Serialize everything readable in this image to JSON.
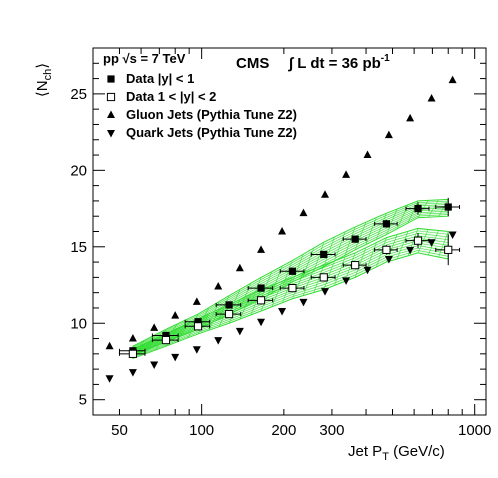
{
  "chart_data": {
    "type": "scatter",
    "title": "",
    "xlabel": "Jet P",
    "xlabel_sub": "T",
    "xlabel_unit": "(GeV/c)",
    "ylabel": "⟨N",
    "ylabel_sub": "ch",
    "ylabel_close": "⟩",
    "x_scale": "log",
    "xlim": [
      40,
      1100
    ],
    "ylim": [
      4,
      28
    ],
    "x_tick_labels": [
      "50",
      "100",
      "200",
      "300",
      "1000"
    ],
    "y_tick_labels": [
      "5",
      "10",
      "15",
      "20",
      "25"
    ],
    "grid": false,
    "legend_position": "top-left",
    "header": {
      "left": "pp √s = 7 TeV",
      "cms": "CMS",
      "lumi": "∫ L dt = 36 pb",
      "lumi_sup": "-1"
    },
    "series": [
      {
        "name": "Data |y| < 1",
        "marker": "filled-square",
        "x": [
          56,
          74,
          97,
          126,
          165,
          215,
          280,
          365,
          475,
          620,
          800
        ],
        "x_low": [
          50,
          66,
          87,
          113,
          148,
          194,
          252,
          330,
          430,
          560,
          720
        ],
        "x_high": [
          62,
          82,
          107,
          139,
          182,
          237,
          308,
          400,
          520,
          680,
          880
        ],
        "y": [
          8.2,
          9.2,
          10.1,
          11.2,
          12.3,
          13.4,
          14.5,
          15.5,
          16.5,
          17.5,
          17.6
        ],
        "y_err": [
          0.15,
          0.15,
          0.15,
          0.15,
          0.15,
          0.15,
          0.2,
          0.2,
          0.25,
          0.4,
          0.6
        ],
        "band_low": [
          7.9,
          8.8,
          9.6,
          10.6,
          11.6,
          12.7,
          13.7,
          14.8,
          15.8,
          16.9,
          17.0
        ],
        "band_high": [
          8.5,
          9.6,
          10.6,
          11.8,
          13.0,
          14.1,
          15.3,
          16.3,
          17.2,
          18.0,
          18.1
        ]
      },
      {
        "name": "Data 1 < |y| < 2",
        "marker": "open-square",
        "x": [
          56,
          74,
          97,
          126,
          165,
          215,
          280,
          365,
          475,
          620,
          800
        ],
        "x_low": [
          50,
          66,
          87,
          113,
          148,
          194,
          252,
          330,
          430,
          560,
          720
        ],
        "x_high": [
          62,
          82,
          107,
          139,
          182,
          237,
          308,
          400,
          520,
          680,
          880
        ],
        "y": [
          8.0,
          8.9,
          9.8,
          10.6,
          11.5,
          12.3,
          13.0,
          13.8,
          14.8,
          15.4,
          14.8
        ],
        "y_err": [
          0.15,
          0.15,
          0.15,
          0.15,
          0.15,
          0.15,
          0.2,
          0.2,
          0.3,
          0.5,
          1.0
        ],
        "band_low": [
          7.7,
          8.5,
          9.3,
          10.0,
          10.8,
          11.6,
          12.2,
          13.0,
          14.0,
          14.6,
          14.2
        ],
        "band_high": [
          8.3,
          9.3,
          10.3,
          11.2,
          12.2,
          13.0,
          13.8,
          14.6,
          15.6,
          16.2,
          16.0
        ]
      },
      {
        "name": "Gluon Jets (Pythia Tune Z2)",
        "marker": "filled-triangle-up",
        "x": [
          46,
          56,
          67,
          80,
          96,
          115,
          138,
          165,
          197,
          236,
          283,
          338,
          405,
          485,
          580,
          695,
          830
        ],
        "y": [
          8.5,
          9.0,
          9.7,
          10.5,
          11.4,
          12.4,
          13.6,
          14.8,
          16.0,
          17.2,
          18.4,
          19.7,
          21.0,
          22.3,
          23.4,
          24.7,
          25.9
        ]
      },
      {
        "name": "Quark Jets (Pythia Tune Z2)",
        "marker": "filled-triangle-down",
        "x": [
          46,
          56,
          67,
          80,
          96,
          115,
          138,
          165,
          197,
          236,
          283,
          338,
          405,
          485,
          580,
          695,
          830
        ],
        "y": [
          6.4,
          6.8,
          7.3,
          7.8,
          8.3,
          8.9,
          9.5,
          10.1,
          10.8,
          11.4,
          12.1,
          12.8,
          13.5,
          14.2,
          14.8,
          15.3,
          15.8
        ]
      }
    ]
  }
}
